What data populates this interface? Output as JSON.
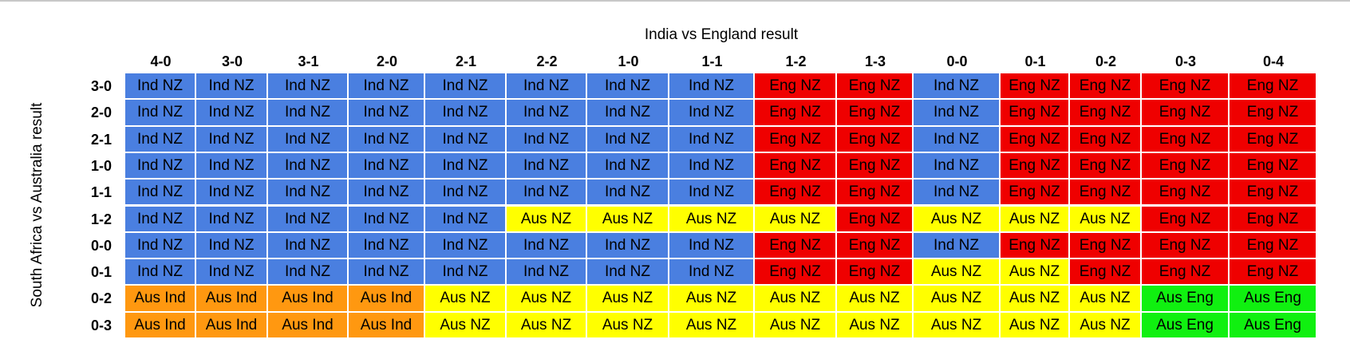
{
  "chart_data": {
    "type": "table",
    "title": "",
    "xlabel": "India vs England result",
    "ylabel": "South Africa vs Australia result",
    "columns": [
      "4-0",
      "3-0",
      "3-1",
      "2-0",
      "2-1",
      "2-2",
      "1-0",
      "1-1",
      "1-2",
      "1-3",
      "0-0",
      "0-1",
      "0-2",
      "0-3",
      "0-4"
    ],
    "rows": [
      "3-0",
      "2-0",
      "2-1",
      "1-0",
      "1-1",
      "1-2",
      "0-0",
      "0-1",
      "0-2",
      "0-3"
    ],
    "cells": [
      [
        "Ind NZ",
        "Ind NZ",
        "Ind NZ",
        "Ind NZ",
        "Ind NZ",
        "Ind NZ",
        "Ind NZ",
        "Ind NZ",
        "Eng NZ",
        "Eng NZ",
        "Ind NZ",
        "Eng NZ",
        "Eng NZ",
        "Eng NZ",
        "Eng NZ"
      ],
      [
        "Ind NZ",
        "Ind NZ",
        "Ind NZ",
        "Ind NZ",
        "Ind NZ",
        "Ind NZ",
        "Ind NZ",
        "Ind NZ",
        "Eng NZ",
        "Eng NZ",
        "Ind NZ",
        "Eng NZ",
        "Eng NZ",
        "Eng NZ",
        "Eng NZ"
      ],
      [
        "Ind NZ",
        "Ind NZ",
        "Ind NZ",
        "Ind NZ",
        "Ind NZ",
        "Ind NZ",
        "Ind NZ",
        "Ind NZ",
        "Eng NZ",
        "Eng NZ",
        "Ind NZ",
        "Eng NZ",
        "Eng NZ",
        "Eng NZ",
        "Eng NZ"
      ],
      [
        "Ind NZ",
        "Ind NZ",
        "Ind NZ",
        "Ind NZ",
        "Ind NZ",
        "Ind NZ",
        "Ind NZ",
        "Ind NZ",
        "Eng NZ",
        "Eng NZ",
        "Ind NZ",
        "Eng NZ",
        "Eng NZ",
        "Eng NZ",
        "Eng NZ"
      ],
      [
        "Ind NZ",
        "Ind NZ",
        "Ind NZ",
        "Ind NZ",
        "Ind NZ",
        "Ind NZ",
        "Ind NZ",
        "Ind NZ",
        "Eng NZ",
        "Eng NZ",
        "Ind NZ",
        "Eng NZ",
        "Eng NZ",
        "Eng NZ",
        "Eng NZ"
      ],
      [
        "Ind NZ",
        "Ind NZ",
        "Ind NZ",
        "Ind NZ",
        "Ind NZ",
        "Aus NZ",
        "Aus NZ",
        "Aus NZ",
        "Aus NZ",
        "Eng NZ",
        "Aus NZ",
        "Aus NZ",
        "Aus NZ",
        "Eng NZ",
        "Eng NZ"
      ],
      [
        "Ind NZ",
        "Ind NZ",
        "Ind NZ",
        "Ind NZ",
        "Ind NZ",
        "Ind NZ",
        "Ind NZ",
        "Ind NZ",
        "Eng NZ",
        "Eng NZ",
        "Ind NZ",
        "Eng NZ",
        "Eng NZ",
        "Eng NZ",
        "Eng NZ"
      ],
      [
        "Ind NZ",
        "Ind NZ",
        "Ind NZ",
        "Ind NZ",
        "Ind NZ",
        "Ind NZ",
        "Ind NZ",
        "Ind NZ",
        "Eng NZ",
        "Eng NZ",
        "Aus NZ",
        "Aus NZ",
        "Eng NZ",
        "Eng NZ",
        "Eng NZ"
      ],
      [
        "Aus Ind",
        "Aus Ind",
        "Aus Ind",
        "Aus Ind",
        "Aus NZ",
        "Aus NZ",
        "Aus NZ",
        "Aus NZ",
        "Aus NZ",
        "Aus NZ",
        "Aus NZ",
        "Aus NZ",
        "Aus NZ",
        "Aus Eng",
        "Aus Eng"
      ],
      [
        "Aus Ind",
        "Aus Ind",
        "Aus Ind",
        "Aus Ind",
        "Aus NZ",
        "Aus NZ",
        "Aus NZ",
        "Aus NZ",
        "Aus NZ",
        "Aus NZ",
        "Aus NZ",
        "Aus NZ",
        "Aus NZ",
        "Aus Eng",
        "Aus Eng"
      ]
    ],
    "colors": {
      "Ind NZ": "#4a7fe0",
      "Eng NZ": "#ef0000",
      "Aus NZ": "#ffff00",
      "Aus Ind": "#ff9810",
      "Aus Eng": "#10f010"
    }
  }
}
